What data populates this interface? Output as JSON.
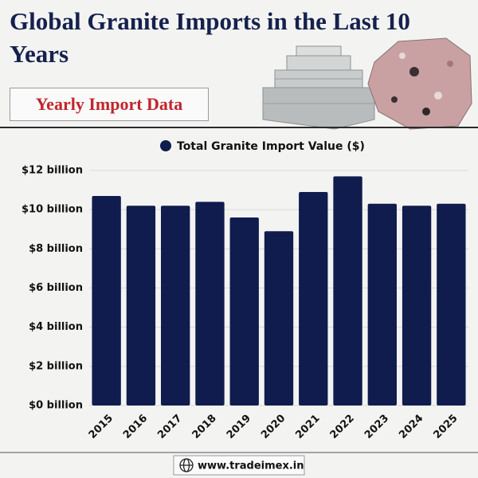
{
  "chart_data": {
    "type": "bar",
    "title": "Global Granite Imports in the Last 10 Years",
    "subtitle": "Yearly Import Data",
    "categories": [
      "2015",
      "2016",
      "2017",
      "2018",
      "2019",
      "2020",
      "2021",
      "2022",
      "2023",
      "2024",
      "2025"
    ],
    "series": [
      {
        "name": "Total Granite Import Value ($)",
        "color": "#0f1c4d",
        "values": [
          10.7,
          10.2,
          10.2,
          10.4,
          9.6,
          8.9,
          10.9,
          11.7,
          10.3,
          10.2,
          10.3
        ]
      }
    ],
    "ylim": [
      0,
      12
    ],
    "yticks": [
      {
        "value": 0,
        "label": "$0 billion"
      },
      {
        "value": 2,
        "label": "$2 billion"
      },
      {
        "value": 4,
        "label": "$4 billion"
      },
      {
        "value": 6,
        "label": "$6 billion"
      },
      {
        "value": 8,
        "label": "$8 billion"
      },
      {
        "value": 10,
        "label": "$10 billion"
      },
      {
        "value": 12,
        "label": "$12 billion"
      }
    ],
    "grid": true,
    "legend": "top"
  },
  "footer": "www.tradeimex.in"
}
